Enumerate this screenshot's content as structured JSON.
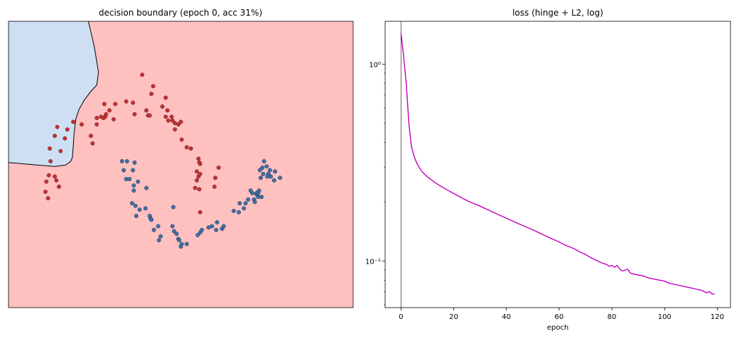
{
  "chart_data": [
    {
      "type": "scatter",
      "title": "decision boundary (epoch 0, acc 31%)",
      "xlabel": "",
      "ylabel": "",
      "axes_ticks": false,
      "grid": false,
      "xlim": [
        -1.6,
        2.5
      ],
      "ylim": [
        -0.9,
        1.35
      ],
      "region_colors": {
        "class_pos": "#cfdff3",
        "class_neg": "#ffc0c0"
      },
      "boundary_color": "#000000",
      "boundary": [
        [
          -0.65,
          1.35
        ],
        [
          -0.58,
          1.15
        ],
        [
          -0.53,
          0.95
        ],
        [
          -0.55,
          0.85
        ],
        [
          -0.62,
          0.8
        ],
        [
          -0.7,
          0.73
        ],
        [
          -0.76,
          0.66
        ],
        [
          -0.8,
          0.58
        ],
        [
          -0.82,
          0.47
        ],
        [
          -0.83,
          0.37
        ],
        [
          -0.84,
          0.28
        ],
        [
          -0.86,
          0.25
        ],
        [
          -0.92,
          0.22
        ],
        [
          -1.05,
          0.21
        ],
        [
          -1.25,
          0.22
        ],
        [
          -1.6,
          0.24
        ]
      ],
      "series": [
        {
          "color": "#c83232",
          "edgecolor": "#5a1a1a",
          "points": [
            [
              -1.11,
              0.35
            ],
            [
              -1.05,
              0.45
            ],
            [
              -1.02,
              0.52
            ],
            [
              -0.98,
              0.33
            ],
            [
              -0.93,
              0.43
            ],
            [
              -0.9,
              0.5
            ],
            [
              -0.83,
              0.56
            ],
            [
              -0.73,
              0.54
            ],
            [
              -0.62,
              0.45
            ],
            [
              -0.6,
              0.39
            ],
            [
              -0.55,
              0.54
            ],
            [
              -0.5,
              0.6
            ],
            [
              -0.45,
              0.6
            ],
            [
              -0.4,
              0.65
            ],
            [
              -0.35,
              0.58
            ],
            [
              -0.46,
              0.7
            ],
            [
              -0.33,
              0.7
            ],
            [
              -0.2,
              0.72
            ],
            [
              -0.12,
              0.71
            ],
            [
              -0.1,
              0.62
            ],
            [
              -0.01,
              0.93
            ],
            [
              0.04,
              0.65
            ],
            [
              0.06,
              0.61
            ],
            [
              0.08,
              0.61
            ],
            [
              0.12,
              0.84
            ],
            [
              0.1,
              0.78
            ],
            [
              -0.55,
              0.59
            ],
            [
              -0.44,
              0.62
            ],
            [
              -0.47,
              0.59
            ],
            [
              0.27,
              0.6
            ],
            [
              0.29,
              0.65
            ],
            [
              0.3,
              0.57
            ],
            [
              0.35,
              0.57
            ],
            [
              0.38,
              0.5
            ],
            [
              0.42,
              0.54
            ],
            [
              0.45,
              0.56
            ],
            [
              0.46,
              0.42
            ],
            [
              0.52,
              0.36
            ],
            [
              0.57,
              0.35
            ],
            [
              0.23,
              0.68
            ],
            [
              0.27,
              0.75
            ],
            [
              0.34,
              0.6
            ],
            [
              0.38,
              0.55
            ],
            [
              0.66,
              0.27
            ],
            [
              0.67,
              0.24
            ],
            [
              0.68,
              0.23
            ],
            [
              0.66,
              0.13
            ],
            [
              0.62,
              0.04
            ],
            [
              0.67,
              0.03
            ],
            [
              0.86,
              0.12
            ],
            [
              0.9,
              0.2
            ],
            [
              0.85,
              0.05
            ],
            [
              0.68,
              -0.15
            ],
            [
              0.64,
              0.1
            ],
            [
              0.64,
              0.17
            ],
            [
              0.68,
              0.15
            ],
            [
              -1.15,
              0.09
            ],
            [
              -1.12,
              0.14
            ],
            [
              -1.1,
              0.25
            ],
            [
              -1.05,
              0.13
            ],
            [
              -1.03,
              0.1
            ],
            [
              -1.0,
              0.05
            ],
            [
              -1.16,
              0.01
            ],
            [
              -1.13,
              -0.04
            ]
          ]
        },
        {
          "color": "#3f70a8",
          "edgecolor": "#1e2f46",
          "points": [
            [
              -0.25,
              0.25
            ],
            [
              -0.19,
              0.25
            ],
            [
              -0.1,
              0.24
            ],
            [
              -0.23,
              0.18
            ],
            [
              -0.12,
              0.18
            ],
            [
              -0.2,
              0.11
            ],
            [
              -0.16,
              0.11
            ],
            [
              -0.06,
              0.09
            ],
            [
              -0.11,
              0.06
            ],
            [
              -0.11,
              0.02
            ],
            [
              0.04,
              0.04
            ],
            [
              -0.13,
              -0.08
            ],
            [
              -0.09,
              -0.1
            ],
            [
              -0.04,
              -0.13
            ],
            [
              0.03,
              -0.12
            ],
            [
              -0.08,
              -0.18
            ],
            [
              0.08,
              -0.18
            ],
            [
              0.09,
              -0.2
            ],
            [
              0.1,
              -0.21
            ],
            [
              0.18,
              -0.26
            ],
            [
              0.13,
              -0.29
            ],
            [
              0.21,
              -0.34
            ],
            [
              0.19,
              -0.37
            ],
            [
              0.35,
              -0.26
            ],
            [
              0.37,
              -0.3
            ],
            [
              0.4,
              -0.32
            ],
            [
              0.42,
              -0.36
            ],
            [
              0.46,
              -0.4
            ],
            [
              0.45,
              -0.42
            ],
            [
              0.52,
              -0.4
            ],
            [
              0.36,
              -0.11
            ],
            [
              0.43,
              -0.37
            ],
            [
              0.65,
              -0.33
            ],
            [
              0.68,
              -0.31
            ],
            [
              0.7,
              -0.29
            ],
            [
              0.78,
              -0.27
            ],
            [
              0.82,
              -0.26
            ],
            [
              0.88,
              -0.23
            ],
            [
              0.87,
              -0.29
            ],
            [
              0.94,
              -0.28
            ],
            [
              0.96,
              -0.26
            ],
            [
              1.08,
              -0.14
            ],
            [
              1.15,
              -0.08
            ],
            [
              1.14,
              -0.15
            ],
            [
              1.2,
              -0.12
            ],
            [
              1.22,
              -0.08
            ],
            [
              1.25,
              -0.05
            ],
            [
              1.32,
              -0.05
            ],
            [
              1.37,
              -0.03
            ],
            [
              1.35,
              -0.01
            ],
            [
              1.35,
              0.0
            ],
            [
              1.37,
              0.0
            ],
            [
              1.38,
              0.02
            ],
            [
              1.33,
              -0.07
            ],
            [
              1.39,
              0.18
            ],
            [
              1.42,
              0.2
            ],
            [
              1.47,
              0.21
            ],
            [
              1.44,
              0.25
            ],
            [
              1.51,
              0.18
            ],
            [
              1.52,
              0.13
            ],
            [
              1.56,
              0.1
            ],
            [
              1.49,
              0.15
            ],
            [
              1.57,
              0.17
            ],
            [
              1.43,
              0.15
            ],
            [
              1.48,
              0.13
            ],
            [
              1.63,
              0.12
            ],
            [
              1.4,
              0.12
            ],
            [
              1.3,
              0.0
            ],
            [
              1.28,
              0.02
            ],
            [
              1.41,
              -0.03
            ]
          ]
        }
      ]
    },
    {
      "type": "line",
      "title": "loss (hinge + L2, log)",
      "xlabel": "epoch",
      "ylabel": "",
      "yscale": "log",
      "xlim": [
        -6,
        125
      ],
      "ylim": [
        0.058,
        1.65
      ],
      "xticks": [
        0,
        20,
        40,
        60,
        80,
        100,
        120
      ],
      "yticks": [
        {
          "value": 0.1,
          "label": "10⁻¹"
        },
        {
          "value": 1,
          "label": "10⁰"
        }
      ],
      "vline_at_x": 0,
      "grid": false,
      "line_color": "#c000c0",
      "x": [
        0,
        1,
        2,
        3,
        4,
        5,
        6,
        7,
        8,
        9,
        10,
        12,
        14,
        16,
        18,
        20,
        22,
        24,
        26,
        28,
        30,
        35,
        40,
        45,
        50,
        55,
        60,
        62,
        64,
        66,
        68,
        70,
        72,
        74,
        76,
        77,
        78,
        79,
        80,
        81,
        82,
        83,
        84,
        85,
        86,
        87,
        88,
        90,
        92,
        94,
        96,
        98,
        100,
        102,
        104,
        106,
        108,
        110,
        112,
        114,
        116,
        117,
        118,
        119
      ],
      "values": [
        1.44,
        1.1,
        0.8,
        0.5,
        0.38,
        0.34,
        0.315,
        0.298,
        0.285,
        0.276,
        0.268,
        0.256,
        0.245,
        0.236,
        0.228,
        0.22,
        0.213,
        0.206,
        0.2,
        0.195,
        0.19,
        0.177,
        0.165,
        0.154,
        0.144,
        0.134,
        0.125,
        0.121,
        0.118,
        0.115,
        0.111,
        0.108,
        0.104,
        0.101,
        0.098,
        0.097,
        0.096,
        0.094,
        0.095,
        0.093,
        0.095,
        0.091,
        0.089,
        0.09,
        0.091,
        0.087,
        0.086,
        0.085,
        0.084,
        0.082,
        0.081,
        0.08,
        0.079,
        0.077,
        0.076,
        0.075,
        0.074,
        0.073,
        0.072,
        0.071,
        0.069,
        0.07,
        0.068,
        0.068
      ]
    }
  ]
}
